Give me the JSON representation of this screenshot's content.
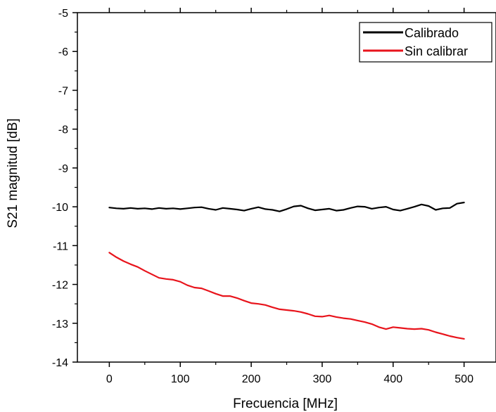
{
  "chart_data": {
    "type": "line",
    "title": "",
    "xlabel": "Frecuencia [MHz]",
    "ylabel": "S21 magnitud [dB]",
    "xlim": [
      -45,
      545
    ],
    "ylim": [
      -14,
      -5
    ],
    "xticks": [
      0,
      100,
      200,
      300,
      400,
      500
    ],
    "xtick_labels": [
      "0",
      "100",
      "200",
      "300",
      "400",
      "500"
    ],
    "yticks": [
      -14,
      -13,
      -12,
      -11,
      -10,
      -9,
      -8,
      -7,
      -6,
      -5
    ],
    "ytick_labels": [
      "-14",
      "-13",
      "-12",
      "-11",
      "-10",
      "-9",
      "-8",
      "-7",
      "-6",
      "-5"
    ],
    "grid": false,
    "legend_position": "top-right",
    "series": [
      {
        "name": "Calibrado",
        "color": "#000000",
        "x": [
          0,
          10,
          20,
          30,
          40,
          50,
          60,
          70,
          80,
          90,
          100,
          110,
          120,
          130,
          140,
          150,
          160,
          170,
          180,
          190,
          200,
          210,
          220,
          230,
          240,
          250,
          260,
          270,
          280,
          290,
          300,
          310,
          320,
          330,
          340,
          350,
          360,
          370,
          380,
          390,
          400,
          410,
          420,
          430,
          440,
          450,
          460,
          470,
          480,
          490,
          500
        ],
        "y": [
          -10.02,
          -10.04,
          -10.05,
          -10.03,
          -10.05,
          -10.04,
          -10.06,
          -10.03,
          -10.05,
          -10.04,
          -10.06,
          -10.04,
          -10.02,
          -10.01,
          -10.05,
          -10.08,
          -10.03,
          -10.05,
          -10.07,
          -10.1,
          -10.05,
          -10.01,
          -10.06,
          -10.08,
          -10.12,
          -10.06,
          -9.99,
          -9.97,
          -10.04,
          -10.09,
          -10.07,
          -10.05,
          -10.1,
          -10.08,
          -10.03,
          -9.99,
          -10.0,
          -10.05,
          -10.02,
          -10.0,
          -10.07,
          -10.1,
          -10.05,
          -10.0,
          -9.94,
          -9.98,
          -10.08,
          -10.04,
          -10.03,
          -9.92,
          -9.89
        ]
      },
      {
        "name": "Sin calibrar",
        "color": "#e8141c",
        "x": [
          0,
          10,
          20,
          30,
          40,
          50,
          60,
          70,
          80,
          90,
          100,
          110,
          120,
          130,
          140,
          150,
          160,
          170,
          180,
          190,
          200,
          210,
          220,
          230,
          240,
          250,
          260,
          270,
          280,
          290,
          300,
          310,
          320,
          330,
          340,
          350,
          360,
          370,
          380,
          390,
          400,
          410,
          420,
          430,
          440,
          450,
          460,
          470,
          480,
          490,
          500
        ],
        "y": [
          -11.18,
          -11.3,
          -11.4,
          -11.48,
          -11.55,
          -11.65,
          -11.74,
          -11.83,
          -11.86,
          -11.88,
          -11.93,
          -12.02,
          -12.08,
          -12.1,
          -12.17,
          -12.24,
          -12.3,
          -12.3,
          -12.35,
          -12.42,
          -12.48,
          -12.5,
          -12.53,
          -12.59,
          -12.64,
          -12.66,
          -12.68,
          -12.71,
          -12.76,
          -12.82,
          -12.83,
          -12.8,
          -12.84,
          -12.87,
          -12.89,
          -12.93,
          -12.97,
          -13.02,
          -13.1,
          -13.15,
          -13.1,
          -13.12,
          -13.14,
          -13.15,
          -13.14,
          -13.17,
          -13.23,
          -13.28,
          -13.33,
          -13.37,
          -13.4
        ]
      }
    ]
  }
}
